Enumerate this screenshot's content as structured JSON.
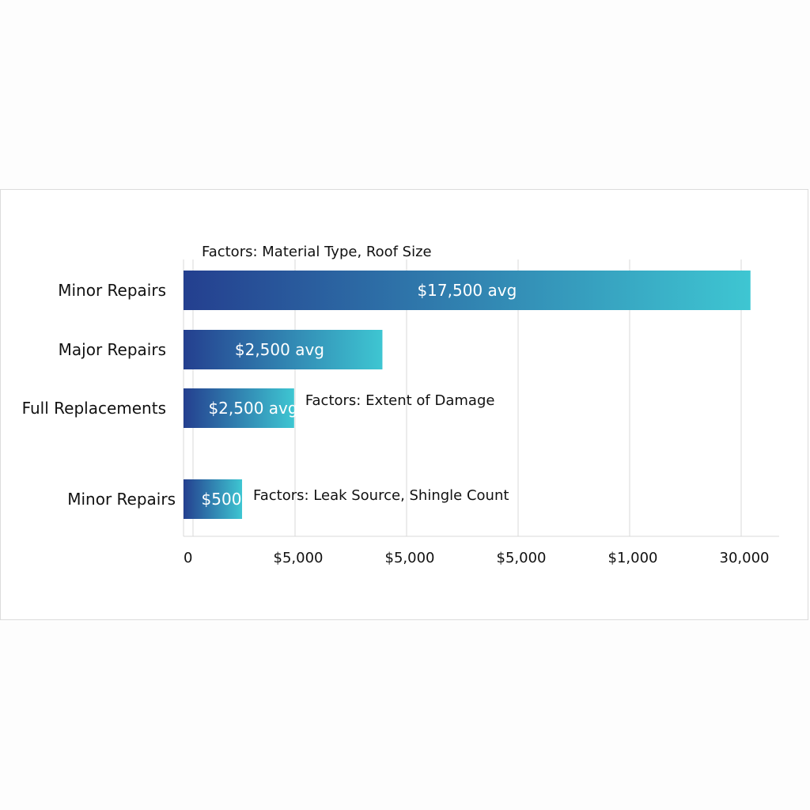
{
  "chart_data": {
    "type": "bar",
    "orientation": "horizontal",
    "categories": [
      "Minor Repairs",
      "Major Repairs",
      "Full Replacements",
      "Minor Repairs"
    ],
    "values": [
      30500,
      10700,
      5950,
      3150
    ],
    "bar_labels": [
      "$17,500 avg",
      "$2,500 avg",
      "$2,500 avg",
      "$500"
    ],
    "annotations": [
      {
        "text": "Factors: Material Type, Roof Size",
        "bar": 0,
        "position": "above"
      },
      {
        "text": "Factors: Extent of Damage",
        "bar": 2,
        "position": "right"
      },
      {
        "text": "Factors: Leak Source, Shingle Count",
        "bar": 3,
        "position": "right"
      }
    ],
    "x_ticks": [
      "0",
      "$5,000",
      "$5,000",
      "$5,000",
      "$1,000",
      "30,000"
    ],
    "xlim": [
      0,
      30000
    ],
    "xlabel": "",
    "ylabel": "",
    "grid": true,
    "colors": {
      "bar_start": "#243f8f",
      "bar_end": "#3ec6d2",
      "grid": "#d9d9d9"
    }
  }
}
